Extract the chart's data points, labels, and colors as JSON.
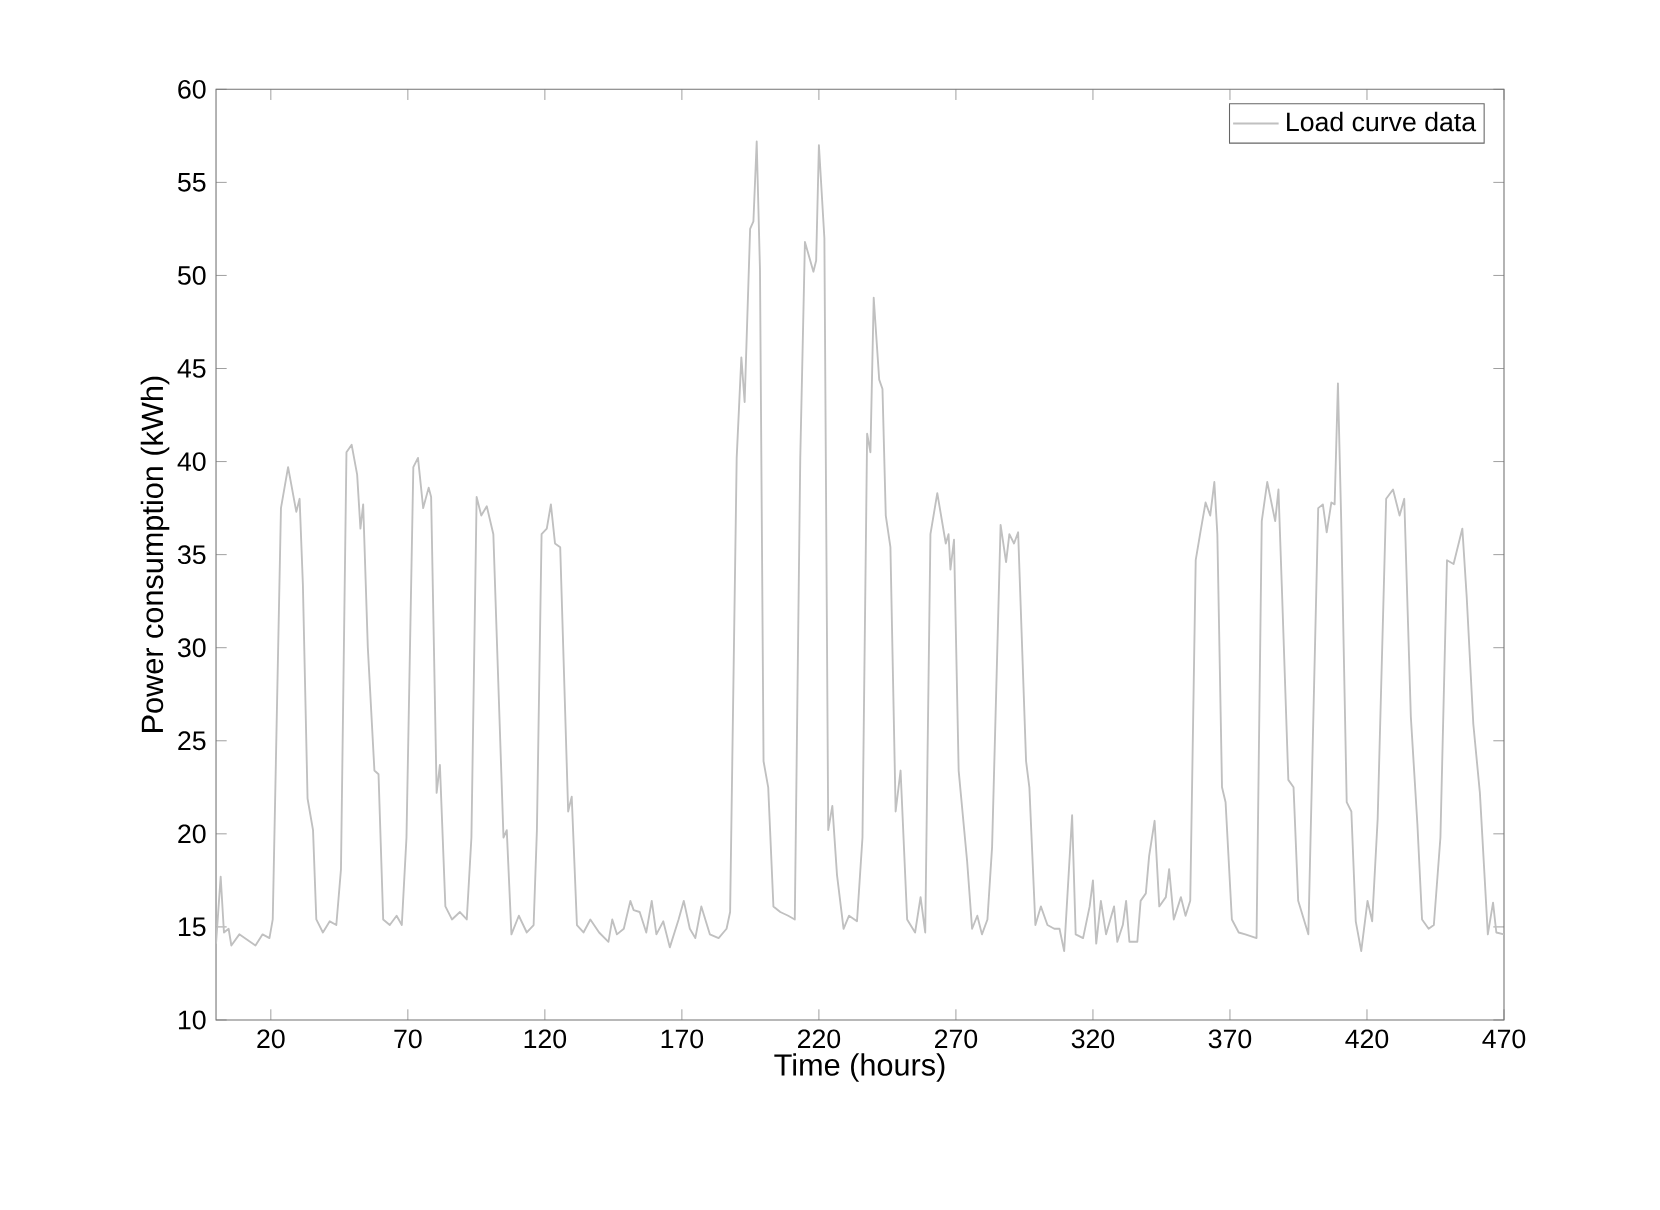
{
  "chart_data": {
    "type": "line",
    "xlabel": "Time (hours)",
    "ylabel": "Power consumption (kWh)",
    "xlim": [
      0,
      470
    ],
    "ylim": [
      10,
      60
    ],
    "xticks": [
      20,
      70,
      120,
      170,
      220,
      270,
      320,
      370,
      420,
      470
    ],
    "yticks": [
      10,
      15,
      20,
      25,
      30,
      35,
      40,
      45,
      50,
      55,
      60
    ],
    "grid": false,
    "legend": "top right",
    "marker": "none",
    "line_style": "solid",
    "series": [
      {
        "name": "Load curve data",
        "color": "#c0c0c0",
        "x": [
          0,
          1.7,
          2.9,
          4.6,
          5.6,
          8.5,
          11.5,
          14.4,
          17,
          19.5,
          20.7,
          23.7,
          26.3,
          29.3,
          30.5,
          31.7,
          33.4,
          35.4,
          36.6,
          39,
          41.5,
          43.9,
          45.6,
          47.6,
          49.5,
          51.5,
          52.7,
          53.7,
          55.4,
          57.8,
          59.3,
          61,
          63.4,
          65.9,
          67.8,
          69.5,
          72,
          73.7,
          75.6,
          77.6,
          78.5,
          80.5,
          81.7,
          83.7,
          86.1,
          89,
          91.5,
          93.2,
          95.1,
          96.8,
          98.8,
          101.2,
          104.9,
          106.1,
          107.8,
          110.5,
          113.4,
          115.9,
          117.1,
          118.8,
          120.7,
          122.2,
          123.7,
          125.6,
          128.5,
          129.8,
          131.7,
          134.1,
          136.6,
          139.8,
          143.2,
          144.6,
          146.3,
          148.8,
          151.2,
          152.4,
          154.6,
          157,
          159,
          160.7,
          163.2,
          165.6,
          168.8,
          170.7,
          172.9,
          174.9,
          177.1,
          180.2,
          183.4,
          186.3,
          187.6,
          190,
          191.7,
          192.9,
          194.9,
          196.1,
          197.3,
          198.5,
          199.8,
          201.5,
          203.4,
          205.9,
          208.8,
          211.2,
          213.2,
          214.9,
          218,
          219,
          220,
          222,
          223.4,
          224.9,
          226.6,
          229,
          231,
          233.9,
          235.9,
          237.6,
          238.8,
          240,
          242,
          243.2,
          244.4,
          246.1,
          248,
          249.8,
          252.2,
          255.1,
          257.1,
          258.8,
          260.7,
          263.2,
          266.3,
          267.3,
          268,
          269.3,
          271,
          274.1,
          275.9,
          277.8,
          279.5,
          281.5,
          283.2,
          286.3,
          288.3,
          289.5,
          291.2,
          292.7,
          295.6,
          296.8,
          299,
          301,
          303.4,
          305.9,
          307.8,
          309.5,
          312.4,
          313.7,
          316.4,
          318.8,
          320,
          321.2,
          322.9,
          324.8,
          327.7,
          328.9,
          330.9,
          332.1,
          333.3,
          336.2,
          337.4,
          339.3,
          340.5,
          342.5,
          344.2,
          346.6,
          347.8,
          349.5,
          352.1,
          353.8,
          355.5,
          357.5,
          359.2,
          361.1,
          362.8,
          364.3,
          365.4,
          367.1,
          368.4,
          370.7,
          373.2,
          375.6,
          379.7,
          381.6,
          383.6,
          386.5,
          387.7,
          388.9,
          391.3,
          393.2,
          394.9,
          398.6,
          402.2,
          403.9,
          405.3,
          407,
          408.2,
          409.4,
          410.6,
          412.6,
          414.3,
          415.9,
          417.9,
          420.2,
          421.9,
          423.9,
          427,
          429.5,
          431.9,
          433.6,
          436,
          438.4,
          440.1,
          442.5,
          444.4,
          446.8,
          449.2,
          451.6,
          454.8,
          456.4,
          458.8,
          461.2,
          464.1,
          466,
          467.2,
          470
        ],
        "values": [
          14.1,
          17.7,
          14.7,
          14.9,
          14.0,
          14.6,
          14.3,
          14.0,
          14.6,
          14.4,
          15.4,
          37.5,
          39.7,
          37.3,
          38.0,
          33.4,
          21.9,
          20.2,
          15.4,
          14.7,
          15.3,
          15.1,
          18.1,
          40.5,
          40.9,
          39.3,
          36.4,
          37.7,
          30.0,
          23.4,
          23.2,
          15.4,
          15.1,
          15.6,
          15.1,
          19.8,
          39.7,
          40.2,
          37.5,
          38.6,
          38.1,
          22.2,
          23.7,
          16.1,
          15.4,
          15.8,
          15.4,
          19.8,
          38.1,
          37.1,
          37.6,
          36.1,
          19.8,
          20.2,
          14.6,
          15.6,
          14.7,
          15.1,
          20.2,
          36.1,
          36.4,
          37.7,
          35.6,
          35.4,
          21.2,
          22.0,
          15.1,
          14.7,
          15.4,
          14.7,
          14.2,
          15.4,
          14.6,
          14.9,
          16.4,
          15.9,
          15.8,
          14.7,
          16.4,
          14.6,
          15.3,
          13.9,
          15.4,
          16.4,
          14.9,
          14.4,
          16.1,
          14.6,
          14.4,
          14.9,
          15.8,
          40.2,
          45.6,
          43.2,
          52.5,
          52.9,
          57.2,
          50.3,
          23.9,
          22.5,
          16.1,
          15.8,
          15.6,
          15.4,
          40.2,
          51.8,
          50.2,
          50.8,
          57.0,
          52.0,
          20.2,
          21.5,
          17.8,
          14.9,
          15.6,
          15.3,
          19.8,
          41.5,
          40.5,
          48.8,
          44.4,
          43.9,
          37.1,
          35.4,
          21.2,
          23.4,
          15.4,
          14.7,
          16.6,
          14.7,
          36.1,
          38.3,
          35.6,
          36.1,
          34.2,
          35.8,
          23.4,
          18.5,
          14.9,
          15.6,
          14.6,
          15.4,
          19.3,
          36.6,
          34.6,
          36.1,
          35.6,
          36.2,
          23.9,
          22.5,
          15.1,
          16.1,
          15.1,
          14.9,
          14.9,
          13.7,
          21.0,
          14.6,
          14.4,
          16.1,
          17.5,
          14.1,
          16.4,
          14.6,
          16.1,
          14.2,
          15.1,
          16.4,
          14.2,
          14.2,
          16.4,
          16.8,
          18.8,
          20.7,
          16.1,
          16.6,
          18.1,
          15.4,
          16.6,
          15.6,
          16.4,
          34.7,
          36.2,
          37.8,
          37.1,
          38.9,
          36.1,
          22.5,
          21.7,
          15.4,
          14.7,
          14.6,
          14.4,
          36.8,
          38.9,
          36.8,
          38.5,
          33.4,
          22.9,
          22.5,
          16.4,
          14.6,
          37.5,
          37.7,
          36.2,
          37.8,
          37.7,
          44.2,
          36.8,
          21.7,
          21.2,
          15.3,
          13.7,
          16.4,
          15.3,
          20.8,
          38.0,
          38.5,
          37.1,
          38.0,
          26.3,
          20.5,
          15.4,
          14.9,
          15.1,
          19.8,
          34.7,
          34.5,
          36.4,
          32.7,
          25.9,
          22.2,
          14.6,
          16.3,
          14.7,
          14.6
        ]
      }
    ]
  }
}
